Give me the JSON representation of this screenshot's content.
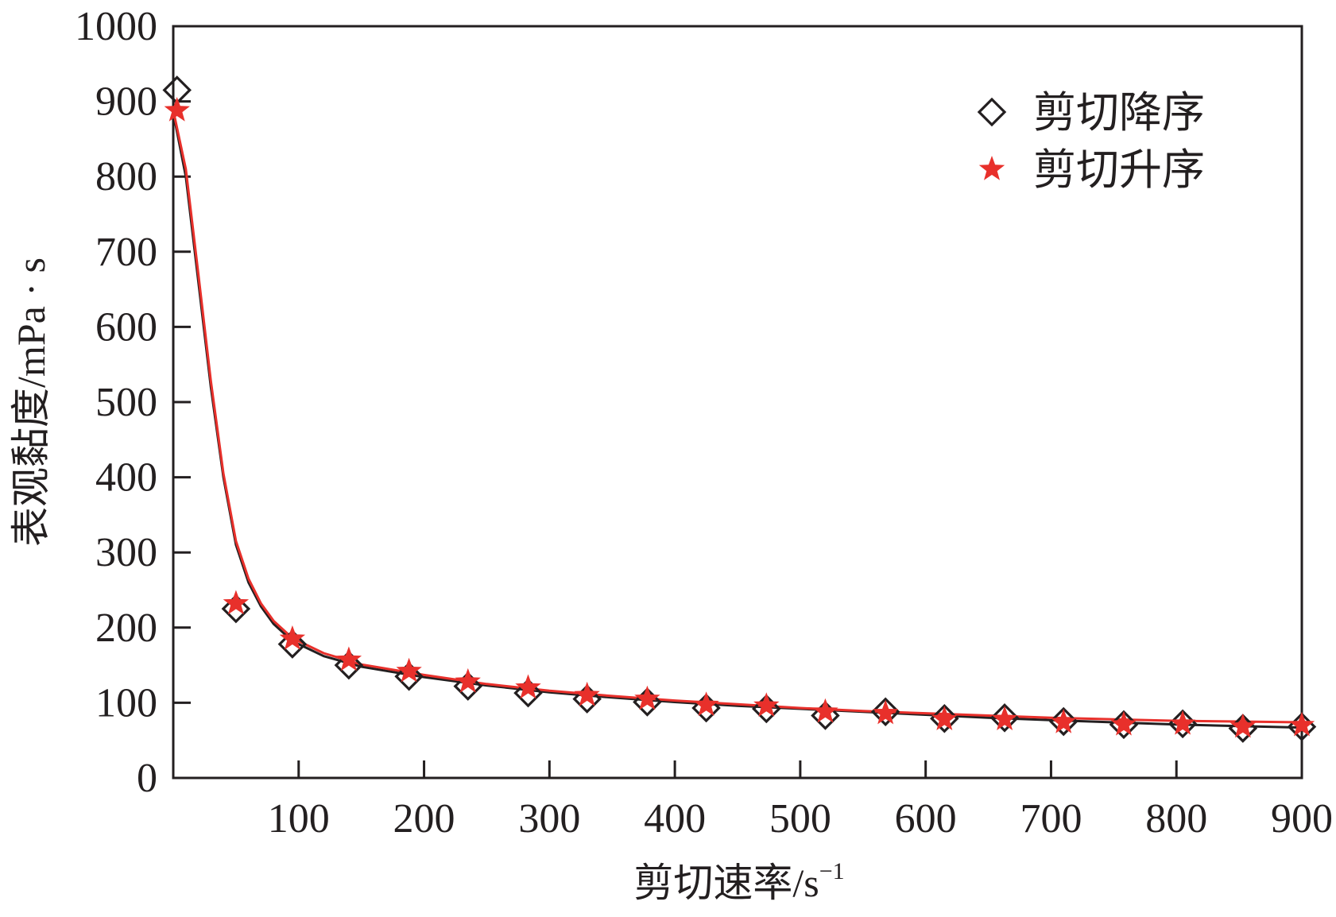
{
  "chart_data": {
    "type": "scatter",
    "title": "",
    "xlabel": "剪切速率/s",
    "xlabel_unit_superscript": "−1",
    "ylabel": "表观黏度/mPa · s",
    "xlim": [
      0,
      900
    ],
    "ylim": [
      0,
      1000
    ],
    "xticks": [
      100,
      200,
      300,
      400,
      500,
      600,
      700,
      800,
      900
    ],
    "yticks": [
      0,
      100,
      200,
      300,
      400,
      500,
      600,
      700,
      800,
      900,
      1000
    ],
    "grid": false,
    "legend_position": "top-right",
    "series": [
      {
        "name": "剪切降序",
        "marker": "diamond-open",
        "color": "#231f20",
        "points": [
          [
            3,
            915
          ],
          [
            50,
            225
          ],
          [
            95,
            178
          ],
          [
            140,
            150
          ],
          [
            188,
            135
          ],
          [
            235,
            122
          ],
          [
            283,
            113
          ],
          [
            330,
            105
          ],
          [
            378,
            101
          ],
          [
            425,
            93
          ],
          [
            473,
            92
          ],
          [
            520,
            83
          ],
          [
            568,
            88
          ],
          [
            615,
            79
          ],
          [
            663,
            80
          ],
          [
            710,
            75
          ],
          [
            758,
            71
          ],
          [
            805,
            72
          ],
          [
            853,
            66
          ],
          [
            900,
            68
          ]
        ],
        "fit_curve": [
          [
            0,
            885
          ],
          [
            10,
            800
          ],
          [
            20,
            660
          ],
          [
            30,
            520
          ],
          [
            40,
            400
          ],
          [
            50,
            310
          ],
          [
            60,
            260
          ],
          [
            70,
            228
          ],
          [
            80,
            205
          ],
          [
            95,
            182
          ],
          [
            120,
            162
          ],
          [
            150,
            148
          ],
          [
            200,
            134
          ],
          [
            250,
            123
          ],
          [
            300,
            114
          ],
          [
            350,
            107
          ],
          [
            400,
            101
          ],
          [
            450,
            96
          ],
          [
            500,
            92
          ],
          [
            550,
            88
          ],
          [
            600,
            84
          ],
          [
            650,
            80
          ],
          [
            700,
            77
          ],
          [
            750,
            74
          ],
          [
            800,
            71
          ],
          [
            850,
            69
          ],
          [
            900,
            67
          ]
        ]
      },
      {
        "name": "剪切升序",
        "marker": "star",
        "color": "#e8302b",
        "points": [
          [
            3,
            888
          ],
          [
            50,
            232
          ],
          [
            95,
            185
          ],
          [
            140,
            157
          ],
          [
            188,
            142
          ],
          [
            235,
            128
          ],
          [
            283,
            120
          ],
          [
            330,
            110
          ],
          [
            378,
            105
          ],
          [
            425,
            97
          ],
          [
            473,
            96
          ],
          [
            520,
            88
          ],
          [
            568,
            86
          ],
          [
            615,
            78
          ],
          [
            663,
            78
          ],
          [
            710,
            74
          ],
          [
            758,
            71
          ],
          [
            805,
            72
          ],
          [
            853,
            68
          ],
          [
            900,
            70
          ]
        ],
        "fit_curve": [
          [
            0,
            888
          ],
          [
            10,
            810
          ],
          [
            20,
            670
          ],
          [
            30,
            528
          ],
          [
            40,
            405
          ],
          [
            50,
            315
          ],
          [
            60,
            265
          ],
          [
            70,
            232
          ],
          [
            80,
            209
          ],
          [
            95,
            186
          ],
          [
            120,
            166
          ],
          [
            150,
            151
          ],
          [
            200,
            137
          ],
          [
            250,
            125
          ],
          [
            300,
            116
          ],
          [
            350,
            109
          ],
          [
            400,
            103
          ],
          [
            450,
            98
          ],
          [
            500,
            93
          ],
          [
            550,
            89
          ],
          [
            600,
            86
          ],
          [
            650,
            83
          ],
          [
            700,
            80
          ],
          [
            750,
            78
          ],
          [
            800,
            76
          ],
          [
            850,
            75
          ],
          [
            900,
            74
          ]
        ]
      }
    ]
  },
  "legend": {
    "items": [
      {
        "label": "剪切降序",
        "marker": "diamond-open",
        "color": "#231f20"
      },
      {
        "label": "剪切升序",
        "marker": "star",
        "color": "#e8302b"
      }
    ]
  }
}
